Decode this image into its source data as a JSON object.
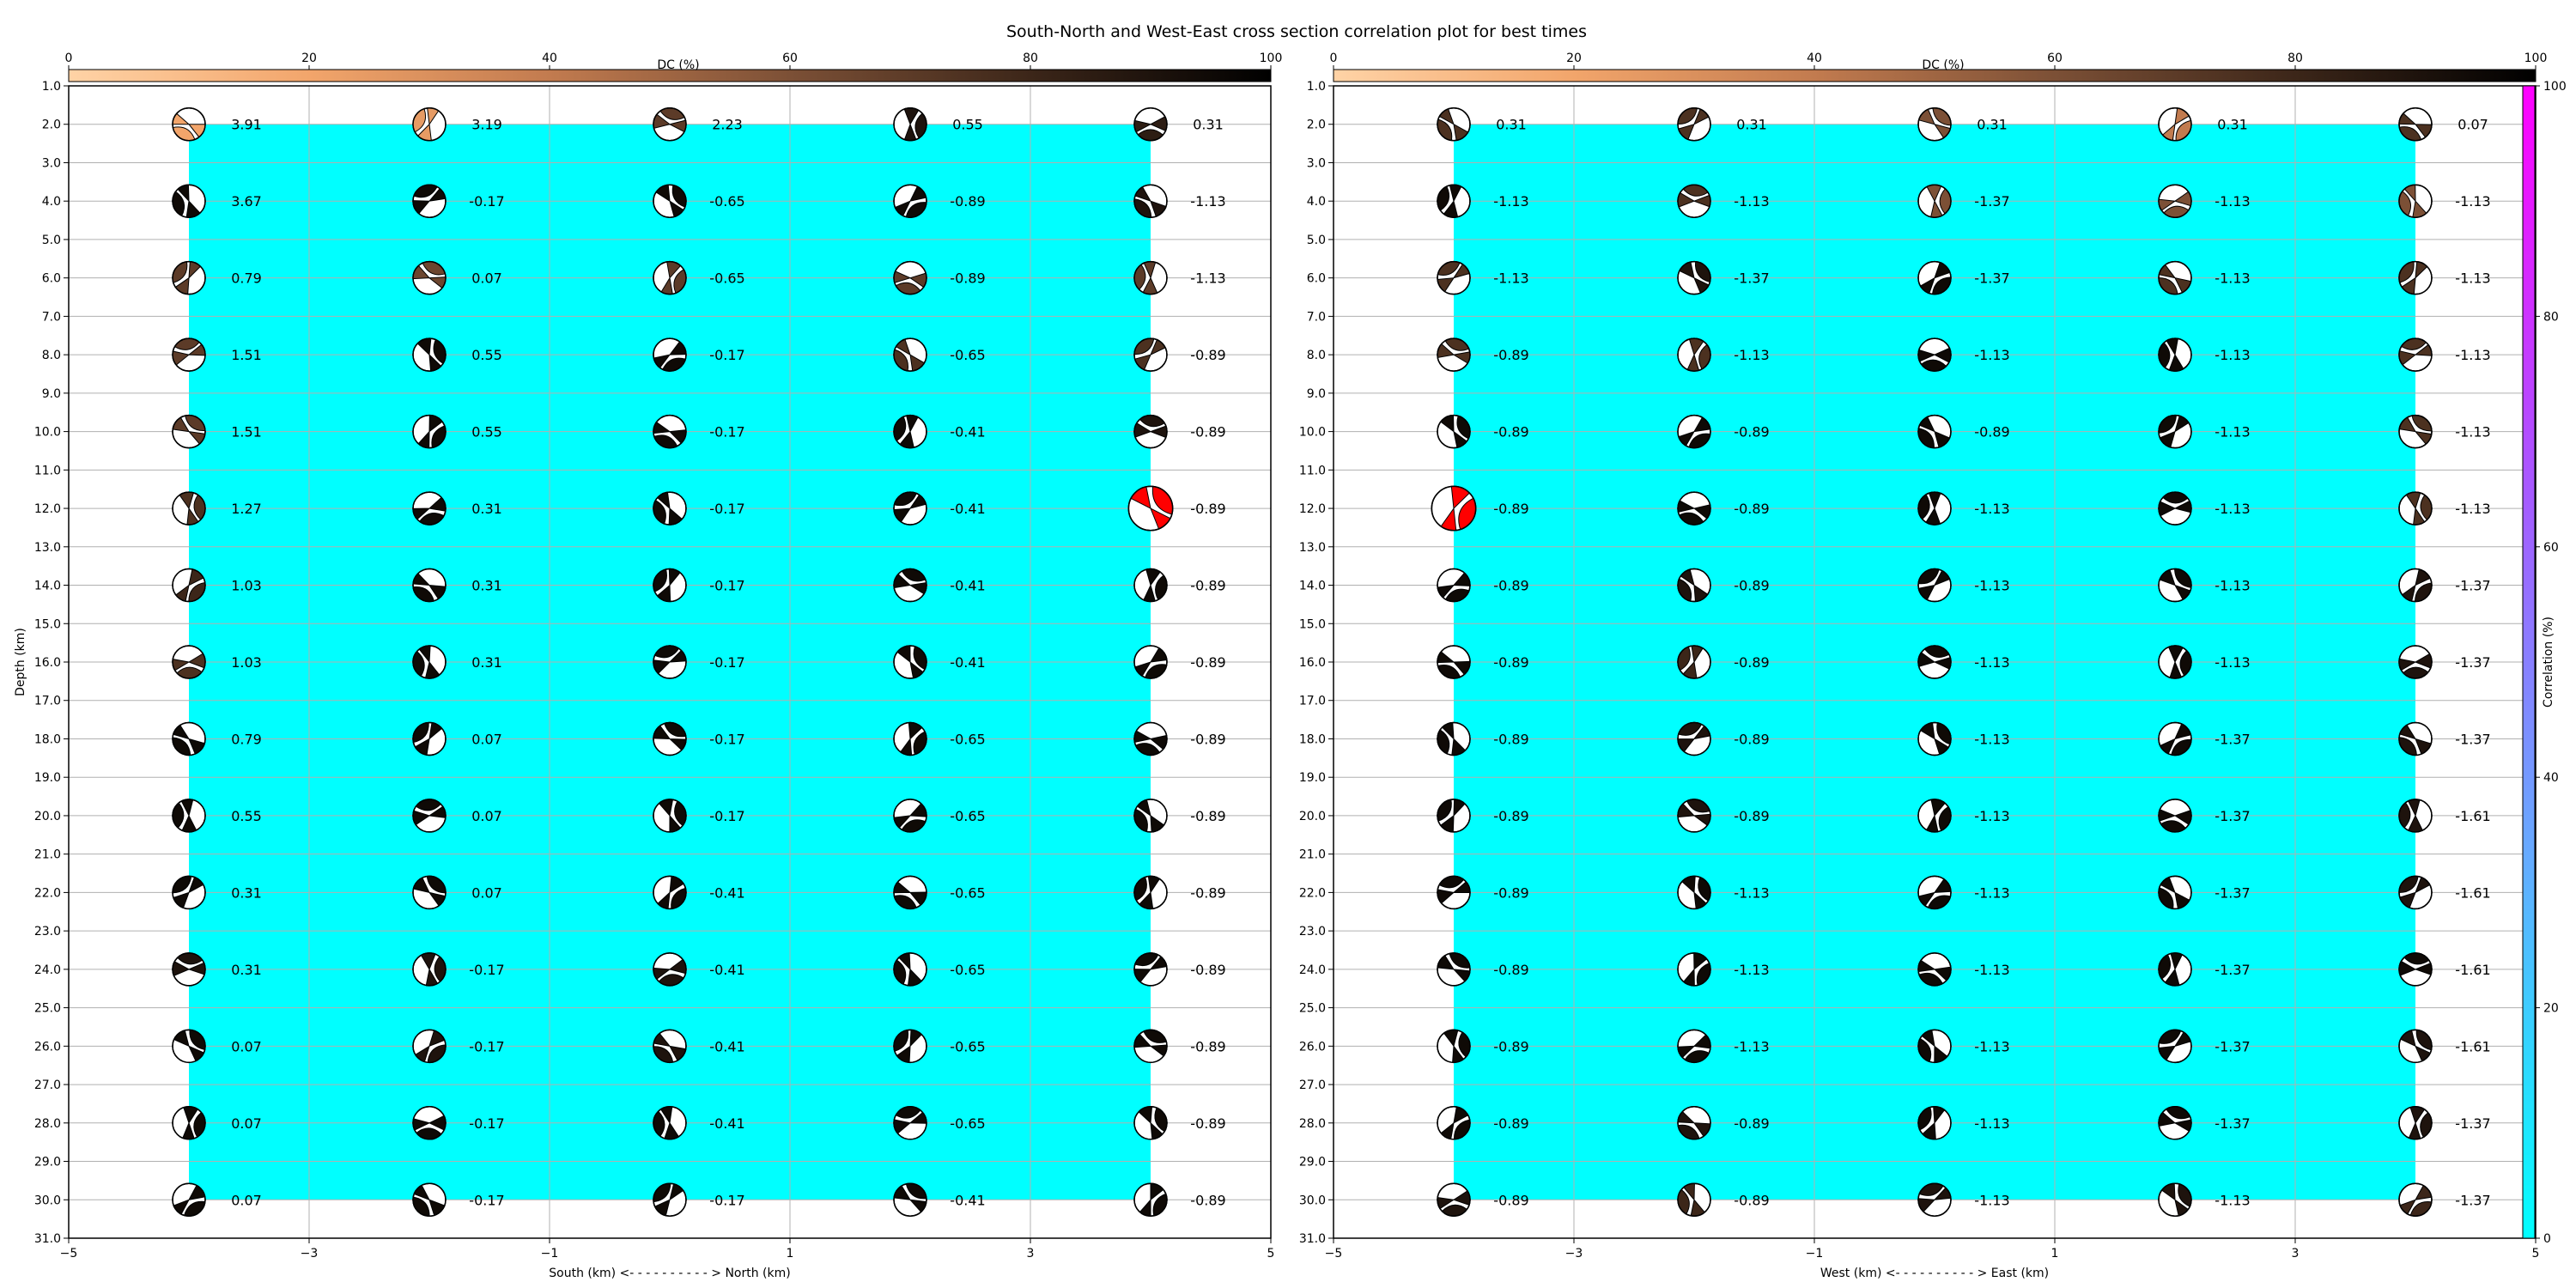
{
  "title": "South-North and West-East cross section correlation plot for best times",
  "colors": {
    "fill": "#0ff0ff",
    "best": "#ff0000",
    "grid": "#b0b0b0",
    "dc_cmap": [
      "#ffd3a6",
      "#f2a56b",
      "#c27b4f",
      "#7c5036",
      "#3c2619",
      "#000000"
    ],
    "corr_cmap": [
      "#00ffff",
      "#66aaff",
      "#aa55ff",
      "#ff00ff"
    ]
  },
  "dc_colorbar": {
    "label": "DC (%)",
    "range": [
      0,
      100
    ],
    "ticks": [
      "0",
      "20",
      "40",
      "60",
      "80",
      "100"
    ]
  },
  "corr_colorbar": {
    "label": "Correlation (%)",
    "range": [
      0,
      100
    ],
    "ticks": [
      "0",
      "20",
      "40",
      "60",
      "80",
      "100"
    ]
  },
  "chart_data": [
    {
      "type": "scatter",
      "panel": "south-north",
      "xlabel": "South (km) <- - - - - - - - - - > North (km)",
      "ylabel": "Depth (km)",
      "xlim": [
        -5,
        5
      ],
      "ylim": [
        31,
        1
      ],
      "x_ticks": [
        "−5",
        "−3",
        "−1",
        "1",
        "3",
        "5"
      ],
      "y_ticks": [
        "1.0",
        "2.0",
        "3.0",
        "4.0",
        "5.0",
        "6.0",
        "7.0",
        "8.0",
        "9.0",
        "10.0",
        "11.0",
        "12.0",
        "13.0",
        "14.0",
        "15.0",
        "16.0",
        "17.0",
        "18.0",
        "19.0",
        "20.0",
        "21.0",
        "22.0",
        "23.0",
        "24.0",
        "25.0",
        "26.0",
        "27.0",
        "28.0",
        "29.0",
        "30.0",
        "31.0"
      ],
      "grid": true,
      "x": [
        -4,
        -2,
        0,
        2,
        4
      ],
      "depths": [
        2,
        4,
        6,
        8,
        10,
        12,
        14,
        16,
        18,
        20,
        22,
        24,
        26,
        28,
        30
      ],
      "fill_region": {
        "x": [
          -4,
          4
        ],
        "depth": [
          2,
          30
        ],
        "correlation": 0
      },
      "best": {
        "x": 4,
        "depth": 12
      },
      "dc": [
        [
          20,
          25,
          70,
          90,
          85
        ],
        [
          95,
          95,
          95,
          95,
          90
        ],
        [
          70,
          65,
          70,
          70,
          70
        ],
        [
          70,
          95,
          95,
          75,
          75
        ],
        [
          70,
          95,
          95,
          95,
          90
        ],
        [
          75,
          95,
          95,
          95,
          0
        ],
        [
          80,
          95,
          95,
          95,
          95
        ],
        [
          75,
          95,
          95,
          95,
          95
        ],
        [
          95,
          95,
          95,
          95,
          95
        ],
        [
          95,
          95,
          95,
          95,
          95
        ],
        [
          95,
          95,
          95,
          95,
          95
        ],
        [
          90,
          90,
          90,
          95,
          95
        ],
        [
          95,
          90,
          90,
          95,
          95
        ],
        [
          95,
          95,
          95,
          95,
          95
        ],
        [
          95,
          95,
          95,
          95,
          95
        ]
      ],
      "labels": [
        [
          "3.91",
          "3.19",
          "2.23",
          "0.55",
          "0.31"
        ],
        [
          "3.67",
          "-0.17",
          "-0.65",
          "-0.89",
          "-1.13"
        ],
        [
          "0.79",
          "0.07",
          "-0.65",
          "-0.89",
          "-1.13"
        ],
        [
          "1.51",
          "0.55",
          "-0.17",
          "-0.65",
          "-0.89"
        ],
        [
          "1.51",
          "0.55",
          "-0.17",
          "-0.41",
          "-0.89"
        ],
        [
          "1.27",
          "0.31",
          "-0.17",
          "-0.41",
          "-0.89"
        ],
        [
          "1.03",
          "0.31",
          "-0.17",
          "-0.41",
          "-0.89"
        ],
        [
          "1.03",
          "0.31",
          "-0.17",
          "-0.41",
          "-0.89"
        ],
        [
          "0.79",
          "0.07",
          "-0.17",
          "-0.65",
          "-0.89"
        ],
        [
          "0.55",
          "0.07",
          "-0.17",
          "-0.65",
          "-0.89"
        ],
        [
          "0.31",
          "0.07",
          "-0.41",
          "-0.65",
          "-0.89"
        ],
        [
          "0.31",
          "-0.17",
          "-0.41",
          "-0.65",
          "-0.89"
        ],
        [
          "0.07",
          "-0.17",
          "-0.41",
          "-0.65",
          "-0.89"
        ],
        [
          "0.07",
          "-0.17",
          "-0.41",
          "-0.65",
          "-0.89"
        ],
        [
          "0.07",
          "-0.17",
          "-0.17",
          "-0.41",
          "-0.89"
        ]
      ]
    },
    {
      "type": "scatter",
      "panel": "west-east",
      "xlabel": "West (km) <- - - - - - - - - - > East (km)",
      "ylabel": "",
      "xlim": [
        -5,
        5
      ],
      "ylim": [
        31,
        1
      ],
      "x_ticks": [
        "−5",
        "−3",
        "−1",
        "1",
        "3",
        "5"
      ],
      "y_ticks": [
        "1.0",
        "2.0",
        "3.0",
        "4.0",
        "5.0",
        "6.0",
        "7.0",
        "8.0",
        "9.0",
        "10.0",
        "11.0",
        "12.0",
        "13.0",
        "14.0",
        "15.0",
        "16.0",
        "17.0",
        "18.0",
        "19.0",
        "20.0",
        "21.0",
        "22.0",
        "23.0",
        "24.0",
        "25.0",
        "26.0",
        "27.0",
        "28.0",
        "29.0",
        "30.0",
        "31.0"
      ],
      "grid": true,
      "x": [
        -4,
        -2,
        0,
        2,
        4
      ],
      "depths": [
        2,
        4,
        6,
        8,
        10,
        12,
        14,
        16,
        18,
        20,
        22,
        24,
        26,
        28,
        30
      ],
      "fill_region": {
        "x": [
          -4,
          4
        ],
        "depth": [
          2,
          30
        ],
        "correlation": 0
      },
      "best": {
        "x": -4,
        "depth": 12
      },
      "dc": [
        [
          75,
          75,
          60,
          40,
          75
        ],
        [
          95,
          75,
          60,
          60,
          60
        ],
        [
          75,
          90,
          95,
          75,
          75
        ],
        [
          75,
          75,
          95,
          95,
          75
        ],
        [
          95,
          95,
          95,
          95,
          75
        ],
        [
          0,
          95,
          95,
          95,
          75
        ],
        [
          95,
          90,
          95,
          95,
          90
        ],
        [
          95,
          80,
          95,
          95,
          90
        ],
        [
          95,
          90,
          95,
          95,
          90
        ],
        [
          95,
          90,
          95,
          95,
          90
        ],
        [
          95,
          95,
          95,
          95,
          90
        ],
        [
          95,
          95,
          95,
          95,
          95
        ],
        [
          95,
          95,
          95,
          95,
          90
        ],
        [
          95,
          90,
          95,
          95,
          90
        ],
        [
          90,
          80,
          90,
          90,
          80
        ]
      ],
      "labels": [
        [
          "0.31",
          "0.31",
          "0.31",
          "0.31",
          "0.07"
        ],
        [
          "-1.13",
          "-1.13",
          "-1.37",
          "-1.13",
          "-1.13"
        ],
        [
          "-1.13",
          "-1.37",
          "-1.37",
          "-1.13",
          "-1.13"
        ],
        [
          "-0.89",
          "-1.13",
          "-1.13",
          "-1.13",
          "-1.13"
        ],
        [
          "-0.89",
          "-0.89",
          "-0.89",
          "-1.13",
          "-1.13"
        ],
        [
          "-0.89",
          "-0.89",
          "-1.13",
          "-1.13",
          "-1.13"
        ],
        [
          "-0.89",
          "-0.89",
          "-1.13",
          "-1.13",
          "-1.37"
        ],
        [
          "-0.89",
          "-0.89",
          "-1.13",
          "-1.13",
          "-1.37"
        ],
        [
          "-0.89",
          "-0.89",
          "-1.13",
          "-1.37",
          "-1.37"
        ],
        [
          "-0.89",
          "-0.89",
          "-1.13",
          "-1.37",
          "-1.61"
        ],
        [
          "-0.89",
          "-1.13",
          "-1.13",
          "-1.37",
          "-1.61"
        ],
        [
          "-0.89",
          "-1.13",
          "-1.13",
          "-1.37",
          "-1.61"
        ],
        [
          "-0.89",
          "-1.13",
          "-1.13",
          "-1.37",
          "-1.61"
        ],
        [
          "-0.89",
          "-0.89",
          "-1.13",
          "-1.37",
          "-1.37"
        ],
        [
          "-0.89",
          "-0.89",
          "-1.13",
          "-1.13",
          "-1.37"
        ]
      ]
    }
  ]
}
